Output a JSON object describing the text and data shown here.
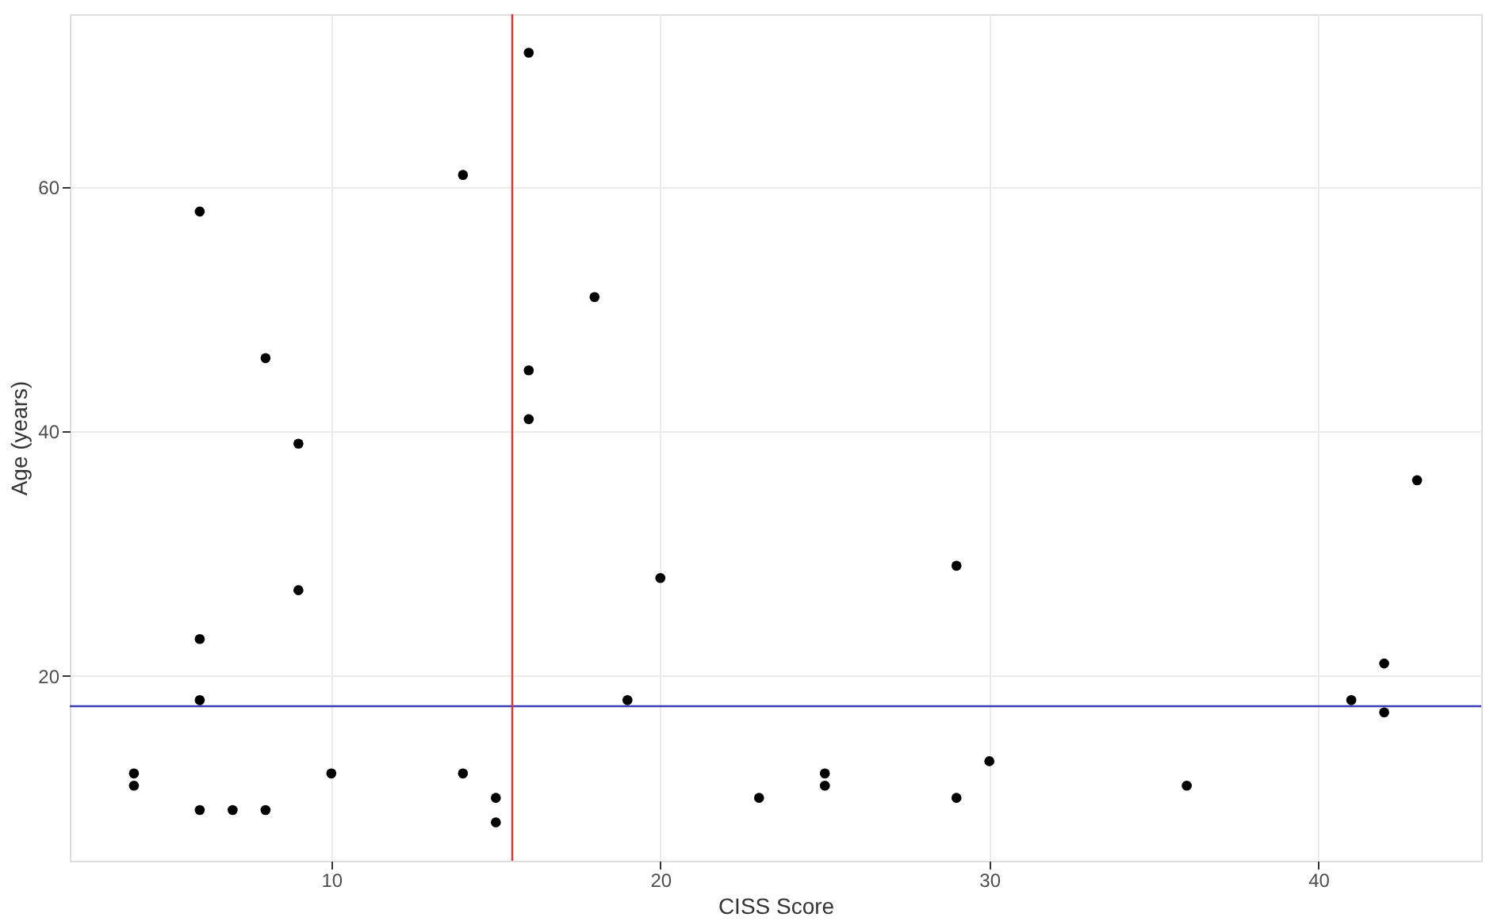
{
  "chart_data": {
    "type": "scatter",
    "xlabel": "CISS Score",
    "ylabel": "Age (years)",
    "x": [
      4,
      4,
      6,
      6,
      6,
      7,
      8,
      9,
      10,
      14,
      15,
      15,
      19,
      20,
      16,
      6,
      14,
      18,
      8,
      16,
      16,
      9,
      23,
      25,
      25,
      29,
      29,
      30,
      36,
      41,
      42,
      42,
      43
    ],
    "series": [
      {
        "color": "#000000",
        "values": [
          12,
          11,
          23,
          18,
          9,
          9,
          9,
          27,
          12,
          12,
          10,
          8,
          18,
          28,
          71,
          58,
          61,
          51,
          46,
          45,
          41,
          39,
          10,
          12,
          11,
          29,
          10,
          13,
          11,
          18,
          21,
          17,
          36
        ]
      }
    ],
    "xlim": [
      2.05,
      44.95
    ],
    "ylim": [
      4.85,
      74.15
    ],
    "xticks": [
      10,
      20,
      30,
      40
    ],
    "yticks": [
      20,
      40,
      60
    ],
    "ref_lines": [
      {
        "axis": "x",
        "value": 15.5,
        "color": "#e8312f"
      },
      {
        "axis": "y",
        "value": 17.5,
        "color": "#3b3bb5"
      }
    ],
    "grid": true,
    "marker": "circle"
  }
}
